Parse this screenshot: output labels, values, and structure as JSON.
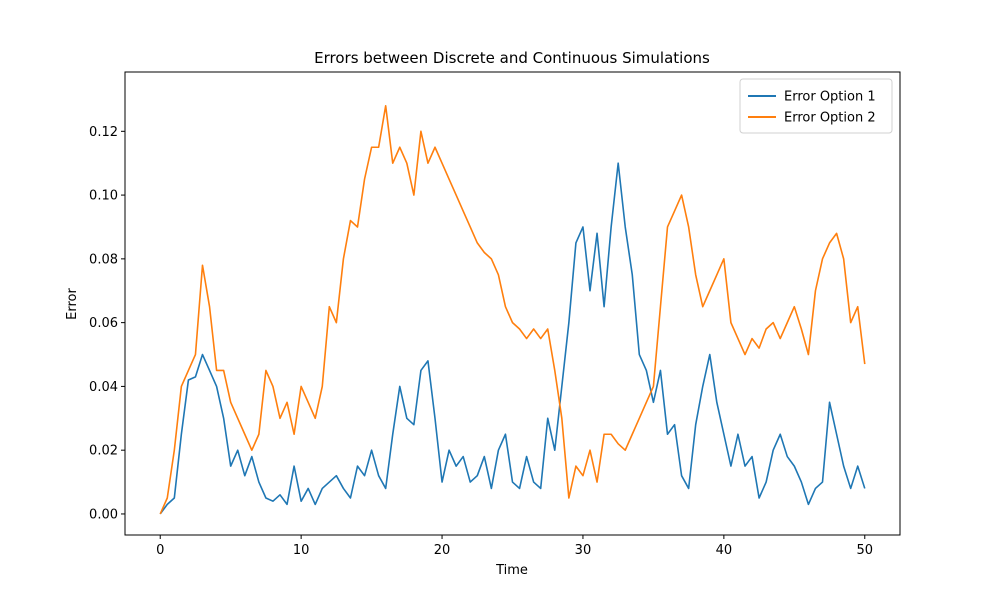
{
  "chart_data": {
    "type": "line",
    "title": "Errors between Discrete and Continuous Simulations",
    "x_label": "Time",
    "y_label": "Error",
    "x": [
      0,
      0.5,
      1,
      1.5,
      2,
      2.5,
      3,
      3.5,
      4,
      4.5,
      5,
      5.5,
      6,
      6.5,
      7,
      7.5,
      8,
      8.5,
      9,
      9.5,
      10,
      10.5,
      11,
      11.5,
      12,
      12.5,
      13,
      13.5,
      14,
      14.5,
      15,
      15.5,
      16,
      16.5,
      17,
      17.5,
      18,
      18.5,
      19,
      19.5,
      20,
      20.5,
      21,
      21.5,
      22,
      22.5,
      23,
      23.5,
      24,
      24.5,
      25,
      25.5,
      26,
      26.5,
      27,
      27.5,
      28,
      28.5,
      29,
      29.5,
      30,
      30.5,
      31,
      31.5,
      32,
      32.5,
      33,
      33.5,
      34,
      34.5,
      35,
      35.5,
      36,
      36.5,
      37,
      37.5,
      38,
      38.5,
      39,
      39.5,
      40,
      40.5,
      41,
      41.5,
      42,
      42.5,
      43,
      43.5,
      44,
      44.5,
      45,
      45.5,
      46,
      46.5,
      47,
      47.5,
      48,
      48.5,
      49,
      49.5,
      50
    ],
    "series": [
      {
        "name": "Error Option 1",
        "color": "#1f77b4",
        "values": [
          0,
          0.003,
          0.005,
          0.025,
          0.042,
          0.043,
          0.05,
          0.045,
          0.04,
          0.03,
          0.015,
          0.02,
          0.012,
          0.018,
          0.01,
          0.005,
          0.004,
          0.006,
          0.003,
          0.015,
          0.004,
          0.008,
          0.003,
          0.008,
          0.01,
          0.012,
          0.008,
          0.005,
          0.015,
          0.012,
          0.02,
          0.012,
          0.008,
          0.025,
          0.04,
          0.03,
          0.028,
          0.045,
          0.048,
          0.03,
          0.01,
          0.02,
          0.015,
          0.018,
          0.01,
          0.012,
          0.018,
          0.008,
          0.02,
          0.025,
          0.01,
          0.008,
          0.018,
          0.01,
          0.008,
          0.03,
          0.02,
          0.04,
          0.06,
          0.085,
          0.09,
          0.07,
          0.088,
          0.065,
          0.09,
          0.11,
          0.09,
          0.075,
          0.05,
          0.045,
          0.035,
          0.045,
          0.025,
          0.028,
          0.012,
          0.008,
          0.028,
          0.04,
          0.05,
          0.035,
          0.025,
          0.015,
          0.025,
          0.015,
          0.018,
          0.005,
          0.01,
          0.02,
          0.025,
          0.018,
          0.015,
          0.01,
          0.003,
          0.008,
          0.01,
          0.035,
          0.025,
          0.015,
          0.008,
          0.015,
          0.008
        ]
      },
      {
        "name": "Error Option 2",
        "color": "#ff7f0e",
        "values": [
          0,
          0.005,
          0.02,
          0.04,
          0.045,
          0.05,
          0.078,
          0.065,
          0.045,
          0.045,
          0.035,
          0.03,
          0.025,
          0.02,
          0.025,
          0.045,
          0.04,
          0.03,
          0.035,
          0.025,
          0.04,
          0.035,
          0.03,
          0.04,
          0.065,
          0.06,
          0.08,
          0.092,
          0.09,
          0.105,
          0.115,
          0.115,
          0.128,
          0.11,
          0.115,
          0.11,
          0.1,
          0.12,
          0.11,
          0.115,
          0.11,
          0.105,
          0.1,
          0.095,
          0.09,
          0.085,
          0.082,
          0.08,
          0.075,
          0.065,
          0.06,
          0.058,
          0.055,
          0.058,
          0.055,
          0.058,
          0.045,
          0.03,
          0.005,
          0.015,
          0.012,
          0.02,
          0.01,
          0.025,
          0.025,
          0.022,
          0.02,
          0.025,
          0.03,
          0.035,
          0.04,
          0.065,
          0.09,
          0.095,
          0.1,
          0.09,
          0.075,
          0.065,
          0.07,
          0.075,
          0.08,
          0.06,
          0.055,
          0.05,
          0.055,
          0.052,
          0.058,
          0.06,
          0.055,
          0.06,
          0.065,
          0.058,
          0.05,
          0.07,
          0.08,
          0.085,
          0.088,
          0.08,
          0.06,
          0.065,
          0.047
        ]
      }
    ],
    "xlim": [
      -2.5,
      52.5
    ],
    "xticks": [
      0,
      10,
      20,
      30,
      40,
      50
    ],
    "ylim": [
      -0.0066,
      0.1386
    ],
    "yticks": [
      {
        "value": 0,
        "label": "0.00"
      },
      0.02,
      0.04,
      0.06,
      0.08,
      {
        "value": 0.1,
        "label": "0.10"
      },
      0.12
    ],
    "legend": "upper right"
  }
}
